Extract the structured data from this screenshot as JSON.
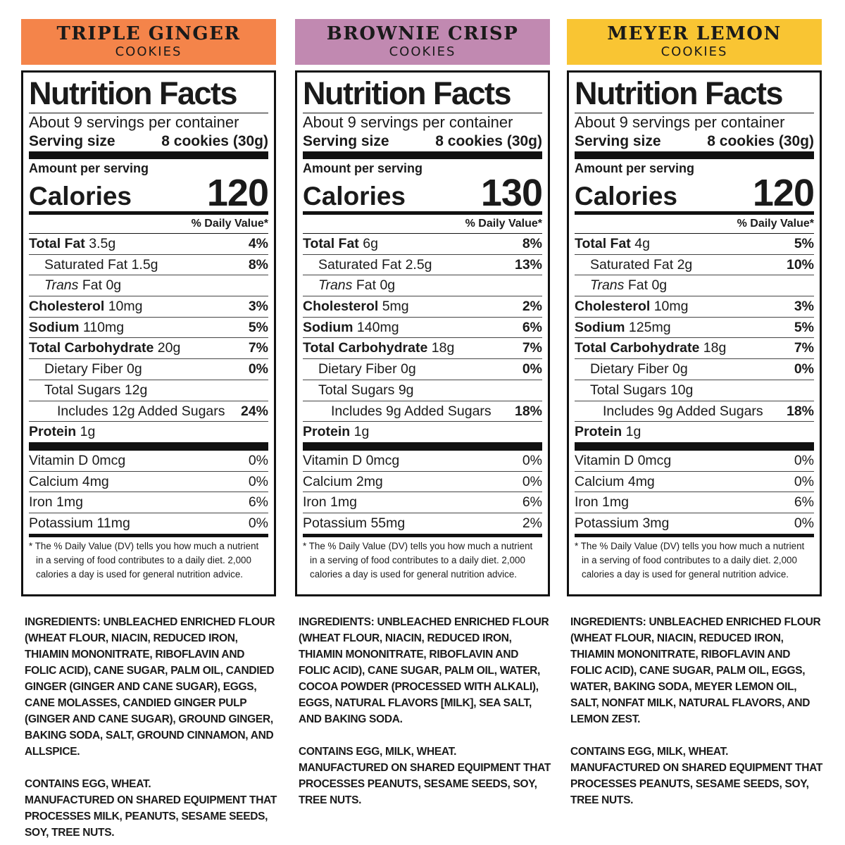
{
  "products": [
    {
      "name": "TRIPLE GINGER",
      "subtitle": "COOKIES",
      "label": {
        "title": "Nutrition Facts",
        "servings": "About 9 servings per container",
        "serving_size_label": "Serving size",
        "serving_size": "8 cookies (30g)",
        "amount_per_serving": "Amount per serving",
        "calories_label": "Calories",
        "calories": 120,
        "dv_header": "% Daily Value*",
        "total_fat": {
          "name": "Total Fat",
          "amount": "3.5g",
          "dv": "4%"
        },
        "saturated_fat": {
          "name": "Saturated Fat",
          "amount": "1.5g",
          "dv": "8%"
        },
        "trans_fat": {
          "prefix": "Trans",
          "name": "Fat",
          "amount": "0g"
        },
        "cholesterol": {
          "name": "Cholesterol",
          "amount": "10mg",
          "dv": "3%"
        },
        "sodium": {
          "name": "Sodium",
          "amount": "110mg",
          "dv": "5%"
        },
        "total_carbohydrate": {
          "name": "Total Carbohydrate",
          "amount": "20g",
          "dv": "7%"
        },
        "dietary_fiber": {
          "name": "Dietary Fiber",
          "amount": "0g",
          "dv": "0%"
        },
        "total_sugars": {
          "name": "Total Sugars",
          "amount": "12g"
        },
        "added_sugars": {
          "text": "Includes 12g Added Sugars",
          "dv": "24%"
        },
        "protein": {
          "name": "Protein",
          "amount": "1g"
        },
        "vitamins": [
          {
            "name": "Vitamin D 0mcg",
            "dv": "0%"
          },
          {
            "name": "Calcium 4mg",
            "dv": "0%"
          },
          {
            "name": "Iron 1mg",
            "dv": "6%"
          },
          {
            "name": "Potassium 11mg",
            "dv": "0%"
          }
        ],
        "footnote": "* The % Daily Value (DV) tells you how much a nutrient in a serving of food contributes to a daily diet. 2,000 calories a day is used for general nutrition advice."
      },
      "ingredients": "INGREDIENTS: UNBLEACHED ENRICHED FLOUR (WHEAT FLOUR, NIACIN, REDUCED IRON, THIAMIN MONONITRATE, RIBOFLAVIN AND FOLIC ACID), CANE SUGAR, PALM OIL, CANDIED GINGER (GINGER AND CANE SUGAR), EGGS, CANE MOLASSES, CANDIED GINGER PULP (GINGER AND CANE SUGAR), GROUND GINGER, BAKING SODA, SALT, GROUND CINNAMON, AND ALLSPICE.",
      "contains": "CONTAINS EGG, WHEAT.",
      "shared": "MANUFACTURED ON SHARED EQUIPMENT THAT PROCESSES MILK, PEANUTS, SESAME SEEDS, SOY, TREE NUTS."
    },
    {
      "name": "BROWNIE CRISP",
      "subtitle": "COOKIES",
      "label": {
        "title": "Nutrition Facts",
        "servings": "About 9 servings per container",
        "serving_size_label": "Serving size",
        "serving_size": "8 cookies (30g)",
        "amount_per_serving": "Amount per serving",
        "calories_label": "Calories",
        "calories": 130,
        "dv_header": "% Daily Value*",
        "total_fat": {
          "name": "Total Fat",
          "amount": "6g",
          "dv": "8%"
        },
        "saturated_fat": {
          "name": "Saturated Fat",
          "amount": "2.5g",
          "dv": "13%"
        },
        "trans_fat": {
          "prefix": "Trans",
          "name": "Fat",
          "amount": "0g"
        },
        "cholesterol": {
          "name": "Cholesterol",
          "amount": "5mg",
          "dv": "2%"
        },
        "sodium": {
          "name": "Sodium",
          "amount": "140mg",
          "dv": "6%"
        },
        "total_carbohydrate": {
          "name": "Total Carbohydrate",
          "amount": "18g",
          "dv": "7%"
        },
        "dietary_fiber": {
          "name": "Dietary Fiber",
          "amount": "0g",
          "dv": "0%"
        },
        "total_sugars": {
          "name": "Total Sugars",
          "amount": "9g"
        },
        "added_sugars": {
          "text": "Includes 9g Added Sugars",
          "dv": "18%"
        },
        "protein": {
          "name": "Protein",
          "amount": "1g"
        },
        "vitamins": [
          {
            "name": "Vitamin D 0mcg",
            "dv": "0%"
          },
          {
            "name": "Calcium 2mg",
            "dv": "0%"
          },
          {
            "name": "Iron 1mg",
            "dv": "6%"
          },
          {
            "name": "Potassium 55mg",
            "dv": "2%"
          }
        ],
        "footnote": "* The % Daily Value (DV) tells you how much a nutrient in a serving of food contributes to a daily diet. 2,000 calories a day is used for general nutrition advice."
      },
      "ingredients": "INGREDIENTS: UNBLEACHED ENRICHED FLOUR (WHEAT FLOUR, NIACIN, REDUCED IRON, THIAMIN MONONITRATE, RIBOFLAVIN AND FOLIC ACID), CANE SUGAR, PALM OIL, WATER, COCOA POWDER (PROCESSED WITH ALKALI), EGGS, NATURAL FLAVORS [MILK], SEA SALT, AND BAKING SODA.",
      "contains": "CONTAINS EGG, MILK, WHEAT.",
      "shared": "MANUFACTURED ON SHARED EQUIPMENT THAT PROCESSES PEANUTS, SESAME SEEDS, SOY, TREE NUTS."
    },
    {
      "name": "MEYER LEMON",
      "subtitle": "COOKIES",
      "label": {
        "title": "Nutrition Facts",
        "servings": "About 9 servings per container",
        "serving_size_label": "Serving size",
        "serving_size": "8 cookies (30g)",
        "amount_per_serving": "Amount per serving",
        "calories_label": "Calories",
        "calories": 120,
        "dv_header": "% Daily Value*",
        "total_fat": {
          "name": "Total Fat",
          "amount": "4g",
          "dv": "5%"
        },
        "saturated_fat": {
          "name": "Saturated Fat",
          "amount": "2g",
          "dv": "10%"
        },
        "trans_fat": {
          "prefix": "Trans",
          "name": "Fat",
          "amount": "0g"
        },
        "cholesterol": {
          "name": "Cholesterol",
          "amount": "10mg",
          "dv": "3%"
        },
        "sodium": {
          "name": "Sodium",
          "amount": "125mg",
          "dv": "5%"
        },
        "total_carbohydrate": {
          "name": "Total Carbohydrate",
          "amount": "18g",
          "dv": "7%"
        },
        "dietary_fiber": {
          "name": "Dietary Fiber",
          "amount": "0g",
          "dv": "0%"
        },
        "total_sugars": {
          "name": "Total Sugars",
          "amount": "10g"
        },
        "added_sugars": {
          "text": "Includes 9g Added Sugars",
          "dv": "18%"
        },
        "protein": {
          "name": "Protein",
          "amount": "1g"
        },
        "vitamins": [
          {
            "name": "Vitamin D 0mcg",
            "dv": "0%"
          },
          {
            "name": "Calcium 4mg",
            "dv": "0%"
          },
          {
            "name": "Iron 1mg",
            "dv": "6%"
          },
          {
            "name": "Potassium 3mg",
            "dv": "0%"
          }
        ],
        "footnote": "* The % Daily Value (DV) tells you how much a nutrient in a serving of food contributes to a daily diet. 2,000 calories a day is used for general nutrition advice."
      },
      "ingredients": "INGREDIENTS: UNBLEACHED ENRICHED FLOUR (WHEAT FLOUR, NIACIN, REDUCED IRON, THIAMIN MONONITRATE, RIBOFLAVIN AND FOLIC ACID), CANE SUGAR, PALM OIL, EGGS, WATER, BAKING SODA, MEYER LEMON OIL, SALT, NONFAT MILK, NATURAL FLAVORS, AND LEMON ZEST.",
      "contains": "CONTAINS EGG, MILK, WHEAT.",
      "shared": "MANUFACTURED ON SHARED EQUIPMENT THAT PROCESSES PEANUTS, SESAME SEEDS, SOY, TREE NUTS."
    }
  ]
}
